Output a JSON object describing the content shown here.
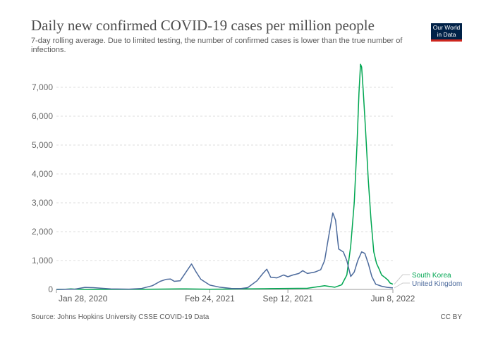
{
  "header": {
    "title": "Daily new confirmed COVID-19 cases per million people",
    "subtitle": "7-day rolling average. Due to limited testing, the number of confirmed cases is lower than the true number of infections.",
    "logo_line1": "Our World",
    "logo_line2": "in Data"
  },
  "footer": {
    "source": "Source: Johns Hopkins University CSSE COVID-19 Data",
    "license": "CC BY"
  },
  "chart_data": {
    "type": "line",
    "title": "Daily new confirmed COVID-19 cases per million people",
    "xlabel": "",
    "ylabel": "",
    "ylim": [
      0,
      7000
    ],
    "yticks": [
      0,
      1000,
      2000,
      3000,
      4000,
      5000,
      6000,
      7000
    ],
    "ytick_labels": [
      "0",
      "1,000",
      "2,000",
      "3,000",
      "4,000",
      "5,000",
      "6,000",
      "7,000"
    ],
    "xticks": [
      "2020-01-28",
      "2021-02-24",
      "2021-09-12",
      "2022-06-08"
    ],
    "xtick_labels": [
      "Jan 28, 2020",
      "Feb 24, 2021",
      "Sep 12, 2021",
      "Jun 8, 2022"
    ],
    "xlim": [
      "2020-01-28",
      "2022-06-08"
    ],
    "grid": "horizontal dashed",
    "legend": "right, at line ends",
    "series": [
      {
        "name": "South Korea",
        "color": "#00a651",
        "points": [
          [
            "2020-01-28",
            0
          ],
          [
            "2020-02-20",
            5
          ],
          [
            "2020-03-05",
            20
          ],
          [
            "2020-03-20",
            8
          ],
          [
            "2020-05-01",
            1
          ],
          [
            "2020-09-01",
            3
          ],
          [
            "2020-12-25",
            20
          ],
          [
            "2021-02-24",
            8
          ],
          [
            "2021-07-15",
            25
          ],
          [
            "2021-09-12",
            35
          ],
          [
            "2021-11-01",
            40
          ],
          [
            "2021-12-15",
            130
          ],
          [
            "2022-01-10",
            75
          ],
          [
            "2022-01-28",
            160
          ],
          [
            "2022-02-10",
            500
          ],
          [
            "2022-02-20",
            1500
          ],
          [
            "2022-03-01",
            3000
          ],
          [
            "2022-03-08",
            5000
          ],
          [
            "2022-03-13",
            6800
          ],
          [
            "2022-03-17",
            7800
          ],
          [
            "2022-03-20",
            7700
          ],
          [
            "2022-03-24",
            6900
          ],
          [
            "2022-03-30",
            5500
          ],
          [
            "2022-04-06",
            3800
          ],
          [
            "2022-04-13",
            2400
          ],
          [
            "2022-04-20",
            1300
          ],
          [
            "2022-04-27",
            900
          ],
          [
            "2022-05-04",
            700
          ],
          [
            "2022-05-10",
            500
          ],
          [
            "2022-05-18",
            420
          ],
          [
            "2022-05-26",
            330
          ],
          [
            "2022-06-01",
            220
          ],
          [
            "2022-06-08",
            180
          ]
        ]
      },
      {
        "name": "United Kingdom",
        "color": "#4c6a9c",
        "points": [
          [
            "2020-01-28",
            0
          ],
          [
            "2020-03-15",
            10
          ],
          [
            "2020-04-10",
            70
          ],
          [
            "2020-05-01",
            60
          ],
          [
            "2020-06-15",
            20
          ],
          [
            "2020-08-01",
            10
          ],
          [
            "2020-09-01",
            30
          ],
          [
            "2020-09-30",
            130
          ],
          [
            "2020-10-20",
            280
          ],
          [
            "2020-11-05",
            350
          ],
          [
            "2020-11-15",
            360
          ],
          [
            "2020-11-25",
            280
          ],
          [
            "2020-12-10",
            300
          ],
          [
            "2020-12-25",
            600
          ],
          [
            "2021-01-08",
            880
          ],
          [
            "2021-01-20",
            600
          ],
          [
            "2021-02-01",
            350
          ],
          [
            "2021-02-24",
            150
          ],
          [
            "2021-03-20",
            80
          ],
          [
            "2021-04-20",
            35
          ],
          [
            "2021-05-15",
            30
          ],
          [
            "2021-06-01",
            60
          ],
          [
            "2021-06-25",
            300
          ],
          [
            "2021-07-10",
            550
          ],
          [
            "2021-07-20",
            700
          ],
          [
            "2021-07-30",
            420
          ],
          [
            "2021-08-15",
            400
          ],
          [
            "2021-09-01",
            500
          ],
          [
            "2021-09-12",
            440
          ],
          [
            "2021-09-25",
            500
          ],
          [
            "2021-10-10",
            550
          ],
          [
            "2021-10-20",
            650
          ],
          [
            "2021-11-01",
            550
          ],
          [
            "2021-11-20",
            600
          ],
          [
            "2021-12-05",
            680
          ],
          [
            "2021-12-15",
            1000
          ],
          [
            "2021-12-25",
            1800
          ],
          [
            "2022-01-05",
            2650
          ],
          [
            "2022-01-12",
            2400
          ],
          [
            "2022-01-20",
            1400
          ],
          [
            "2022-02-01",
            1300
          ],
          [
            "2022-02-10",
            1000
          ],
          [
            "2022-02-20",
            450
          ],
          [
            "2022-03-01",
            600
          ],
          [
            "2022-03-10",
            1000
          ],
          [
            "2022-03-20",
            1300
          ],
          [
            "2022-03-28",
            1250
          ],
          [
            "2022-04-06",
            900
          ],
          [
            "2022-04-15",
            450
          ],
          [
            "2022-04-25",
            180
          ],
          [
            "2022-05-10",
            110
          ],
          [
            "2022-05-25",
            70
          ],
          [
            "2022-06-08",
            50
          ]
        ]
      }
    ]
  }
}
